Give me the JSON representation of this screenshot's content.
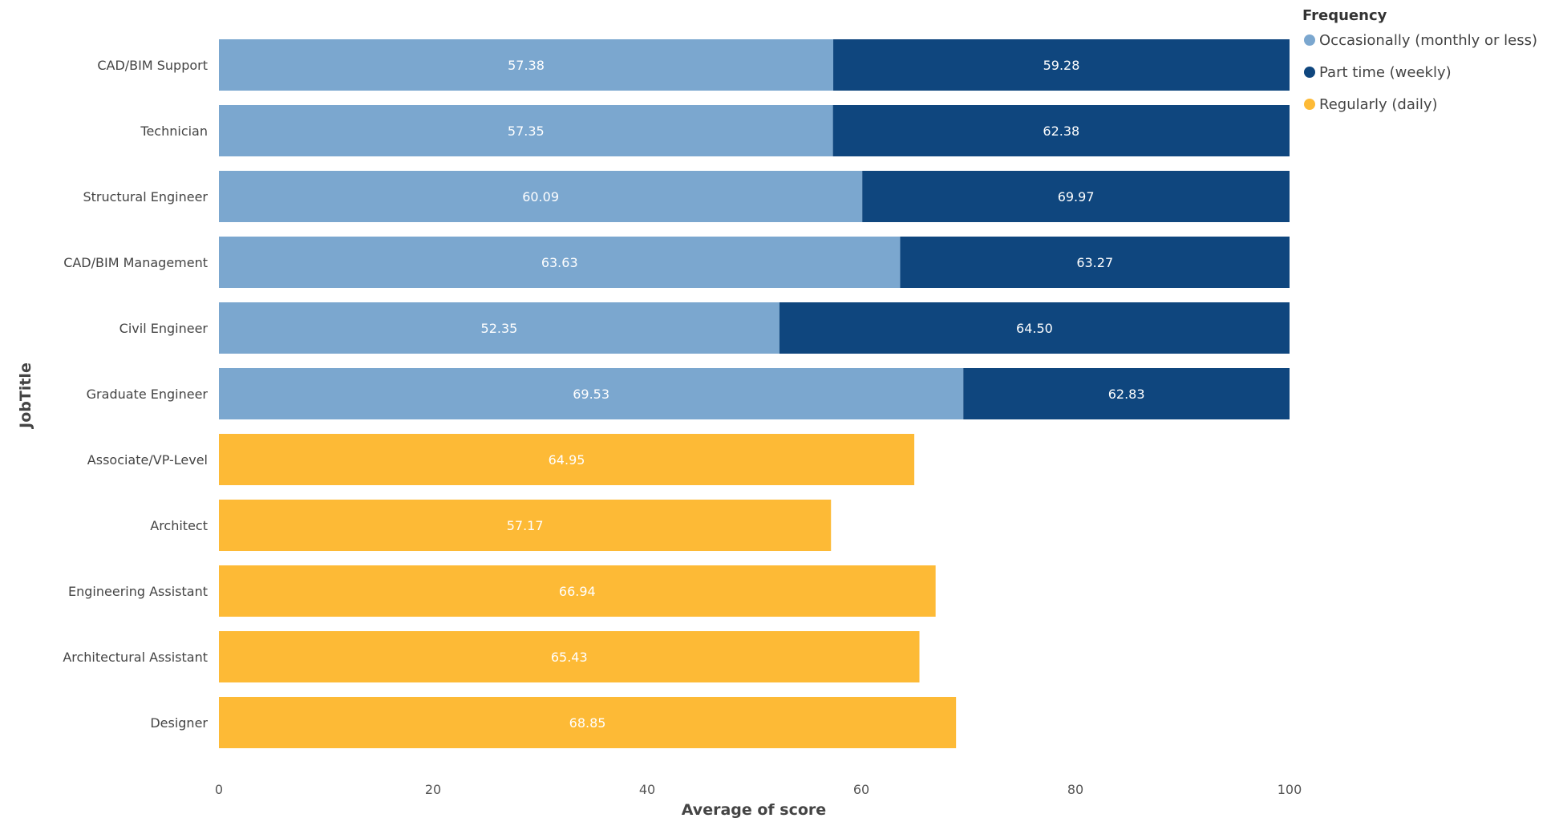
{
  "chart_data": {
    "type": "bar",
    "orientation": "horizontal",
    "stacked": true,
    "xlabel": "Average of score",
    "ylabel": "JobTitle",
    "xlim": [
      0,
      100
    ],
    "x_ticks": [
      "0",
      "20",
      "40",
      "60",
      "80",
      "100"
    ],
    "grid": false,
    "legend": {
      "title": "Frequency",
      "placement": "top-right",
      "items": [
        {
          "label": "Occasionally (monthly or less)",
          "color": "#7BA7CF"
        },
        {
          "label": "Part time (weekly)",
          "color": "#0F467E"
        },
        {
          "label": "Regularly (daily)",
          "color": "#FDBA36"
        }
      ]
    },
    "categories": [
      "CAD/BIM Support",
      "Technician",
      "Structural Engineer",
      "CAD/BIM Management",
      "Civil Engineer",
      "Graduate Engineer",
      "Associate/VP-Level",
      "Architect",
      "Engineering Assistant",
      "Architectural Assistant",
      "Designer"
    ],
    "bars": [
      {
        "segments": [
          {
            "series": 0,
            "value": 57.38,
            "label": "57.38"
          },
          {
            "series": 1,
            "value": 42.62,
            "label": "59.28"
          }
        ]
      },
      {
        "segments": [
          {
            "series": 0,
            "value": 57.35,
            "label": "57.35"
          },
          {
            "series": 1,
            "value": 42.65,
            "label": "62.38"
          }
        ]
      },
      {
        "segments": [
          {
            "series": 0,
            "value": 60.09,
            "label": "60.09"
          },
          {
            "series": 1,
            "value": 39.91,
            "label": "69.97"
          }
        ]
      },
      {
        "segments": [
          {
            "series": 0,
            "value": 63.63,
            "label": "63.63"
          },
          {
            "series": 1,
            "value": 36.37,
            "label": "63.27"
          }
        ]
      },
      {
        "segments": [
          {
            "series": 0,
            "value": 52.35,
            "label": "52.35"
          },
          {
            "series": 1,
            "value": 47.65,
            "label": "64.50"
          }
        ]
      },
      {
        "segments": [
          {
            "series": 0,
            "value": 69.53,
            "label": "69.53"
          },
          {
            "series": 1,
            "value": 30.47,
            "label": "62.83"
          }
        ]
      },
      {
        "segments": [
          {
            "series": 2,
            "value": 64.95,
            "label": "64.95"
          }
        ]
      },
      {
        "segments": [
          {
            "series": 2,
            "value": 57.17,
            "label": "57.17"
          }
        ]
      },
      {
        "segments": [
          {
            "series": 2,
            "value": 66.94,
            "label": "66.94"
          }
        ]
      },
      {
        "segments": [
          {
            "series": 2,
            "value": 65.43,
            "label": "65.43"
          }
        ]
      },
      {
        "segments": [
          {
            "series": 2,
            "value": 68.85,
            "label": "68.85"
          }
        ]
      }
    ]
  }
}
